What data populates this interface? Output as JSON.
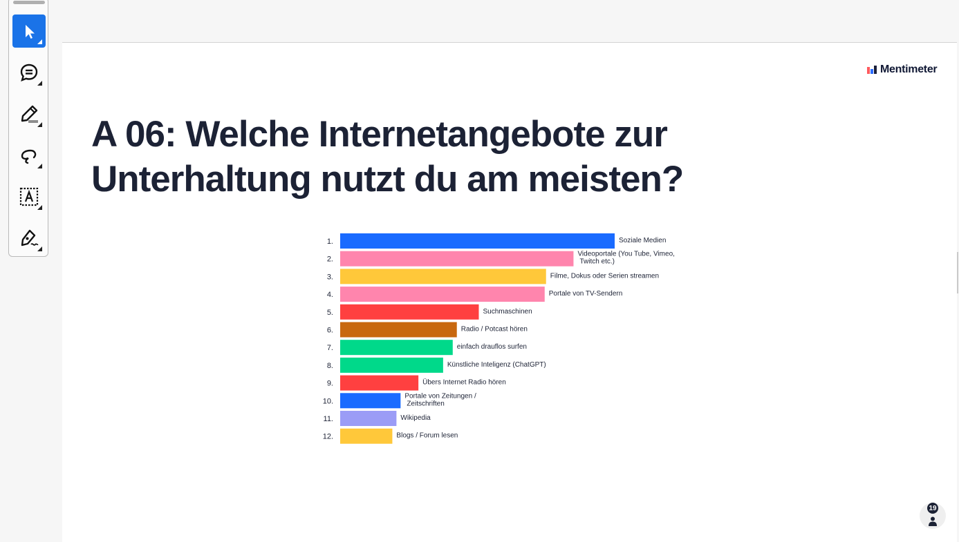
{
  "toolbar": {
    "tools": [
      {
        "name": "select",
        "icon": "pointer-arrow-icon",
        "active": true
      },
      {
        "name": "comment",
        "icon": "comment-icon"
      },
      {
        "name": "highlight",
        "icon": "highlighter-icon"
      },
      {
        "name": "freeform",
        "icon": "lasso-icon"
      },
      {
        "name": "text",
        "icon": "text-box-icon"
      },
      {
        "name": "draw",
        "icon": "pen-icon"
      }
    ]
  },
  "slide": {
    "brand": "Mentimeter",
    "title": "A 06: Welche Internetangebote zur Unterhaltung nutzt du am meisten?",
    "participant_count": "19"
  },
  "colors": {
    "active_tool": "#1a73e8",
    "title_text": "#1c2235",
    "blue": "#1a6bff",
    "pink": "#ff85ad",
    "yellow": "#ffc83a",
    "red": "#ff4040",
    "orange": "#c8680f",
    "green": "#00d98a",
    "lavender": "#9b9cf6"
  },
  "chart_data": {
    "type": "bar",
    "orientation": "horizontal",
    "ranks": [
      "1.",
      "2.",
      "3.",
      "4.",
      "5.",
      "6.",
      "7.",
      "8.",
      "9.",
      "10.",
      "11.",
      "12."
    ],
    "categories": [
      [
        "Soziale Medien"
      ],
      [
        "Videoportale (You Tube, Vimeo,",
        "Twitch etc.)"
      ],
      [
        "Filme, Dokus oder Serien streamen"
      ],
      [
        "Portale von TV-Sendern"
      ],
      [
        "Suchmaschinen"
      ],
      [
        "Radio / Potcast hören"
      ],
      [
        "einfach drauflos surfen"
      ],
      [
        "Künstliche Inteligenz (ChatGPT)"
      ],
      [
        "Übers Internet Radio hören"
      ],
      [
        "Portale von Zeitungen /",
        "Zeitschriften"
      ],
      [
        "Wikipedia"
      ],
      [
        "Blogs / Forum lesen"
      ]
    ],
    "values": [
      100,
      85,
      75,
      74.5,
      50.5,
      42.5,
      41,
      37.5,
      28.5,
      22,
      20.5,
      19
    ],
    "colors": [
      "#1a6bff",
      "#ff85ad",
      "#ffc83a",
      "#ff85ad",
      "#ff4040",
      "#c8680f",
      "#00d98a",
      "#00d98a",
      "#ff4040",
      "#1a6bff",
      "#9b9cf6",
      "#ffc83a"
    ],
    "xlim": [
      0,
      100
    ]
  }
}
